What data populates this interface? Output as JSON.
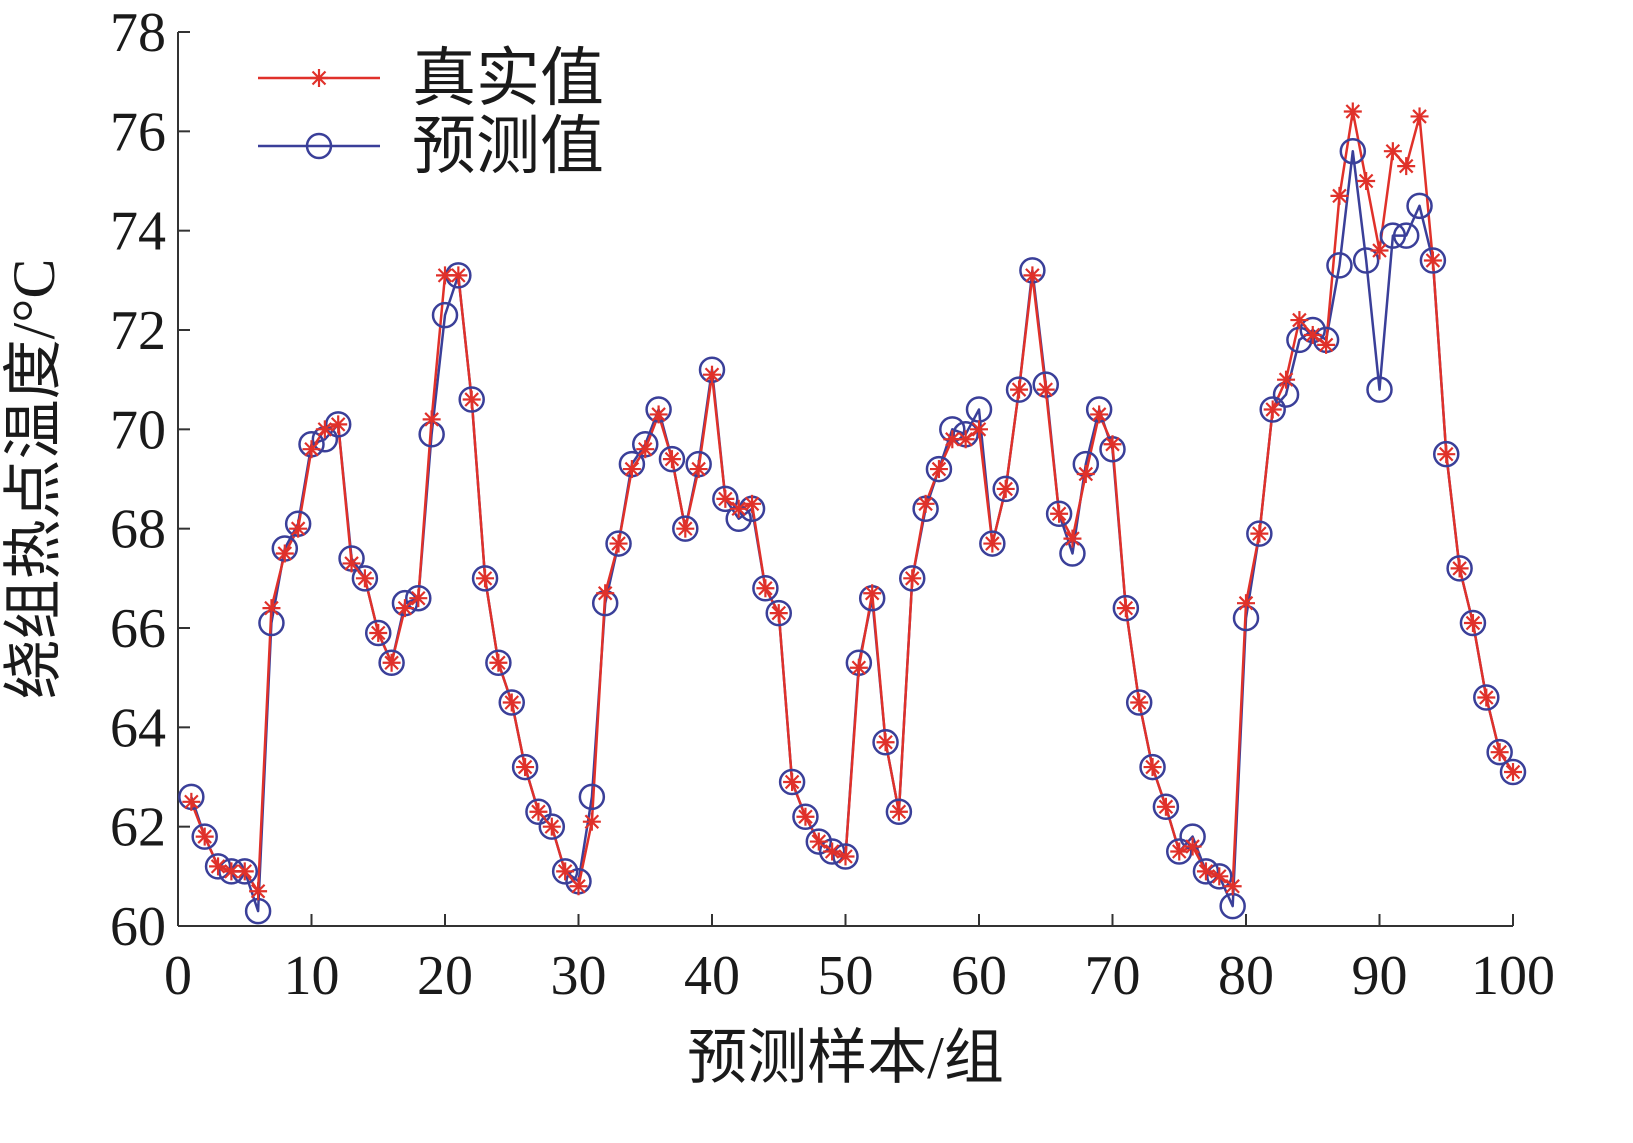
{
  "chart_data": {
    "type": "line",
    "xlabel": "预测样本/组",
    "ylabel": "绕组热点温度/°C",
    "xlim": [
      0,
      100
    ],
    "ylim": [
      60,
      78
    ],
    "xticks": [
      0,
      10,
      20,
      30,
      40,
      50,
      60,
      70,
      80,
      90,
      100
    ],
    "yticks": [
      60,
      62,
      64,
      66,
      68,
      70,
      72,
      74,
      76,
      78
    ],
    "grid": false,
    "legend_position": "top-left",
    "x": [
      1,
      2,
      3,
      4,
      5,
      6,
      7,
      8,
      9,
      10,
      11,
      12,
      13,
      14,
      15,
      16,
      17,
      18,
      19,
      20,
      21,
      22,
      23,
      24,
      25,
      26,
      27,
      28,
      29,
      30,
      31,
      32,
      33,
      34,
      35,
      36,
      37,
      38,
      39,
      40,
      41,
      42,
      43,
      44,
      45,
      46,
      47,
      48,
      49,
      50,
      51,
      52,
      53,
      54,
      55,
      56,
      57,
      58,
      59,
      60,
      61,
      62,
      63,
      64,
      65,
      66,
      67,
      68,
      69,
      70,
      71,
      72,
      73,
      74,
      75,
      76,
      77,
      78,
      79,
      80,
      81,
      82,
      83,
      84,
      85,
      86,
      87,
      88,
      89,
      90,
      91,
      92,
      93,
      94,
      95,
      96,
      97,
      98,
      99,
      100
    ],
    "series": [
      {
        "name": "真实值",
        "color": "#e0312a",
        "marker": "asterisk",
        "values": [
          62.5,
          61.8,
          61.2,
          61.1,
          61.1,
          60.7,
          66.4,
          67.5,
          68.0,
          69.6,
          70.0,
          70.1,
          67.3,
          67.0,
          65.9,
          65.3,
          66.4,
          66.6,
          70.2,
          73.1,
          73.1,
          70.6,
          67.0,
          65.3,
          64.5,
          63.2,
          62.3,
          62.0,
          61.1,
          60.8,
          62.1,
          66.7,
          67.7,
          69.2,
          69.6,
          70.3,
          69.4,
          68.0,
          69.2,
          71.1,
          68.6,
          68.4,
          68.5,
          66.8,
          66.3,
          62.9,
          62.2,
          61.7,
          61.5,
          61.4,
          65.2,
          66.7,
          63.7,
          62.3,
          67.0,
          68.5,
          69.2,
          69.8,
          69.8,
          70.0,
          67.7,
          68.8,
          70.8,
          73.1,
          70.8,
          68.3,
          67.8,
          69.1,
          70.3,
          69.7,
          66.4,
          64.5,
          63.2,
          62.4,
          61.5,
          61.6,
          61.1,
          61.0,
          60.8,
          66.5,
          67.9,
          70.4,
          71.0,
          72.2,
          71.9,
          71.7,
          74.7,
          76.4,
          75.0,
          73.6,
          75.6,
          75.3,
          76.3,
          73.4,
          69.5,
          67.2,
          66.1,
          64.6,
          63.5,
          63.1
        ]
      },
      {
        "name": "预测值",
        "color": "#3a3f99",
        "marker": "circle",
        "values": [
          62.6,
          61.8,
          61.2,
          61.1,
          61.1,
          60.3,
          66.1,
          67.6,
          68.1,
          69.7,
          69.8,
          70.1,
          67.4,
          67.0,
          65.9,
          65.3,
          66.5,
          66.6,
          69.9,
          72.3,
          73.1,
          70.6,
          67.0,
          65.3,
          64.5,
          63.2,
          62.3,
          62.0,
          61.1,
          60.9,
          62.6,
          66.5,
          67.7,
          69.3,
          69.7,
          70.4,
          69.4,
          68.0,
          69.3,
          71.2,
          68.6,
          68.2,
          68.4,
          66.8,
          66.3,
          62.9,
          62.2,
          61.7,
          61.5,
          61.4,
          65.3,
          66.6,
          63.7,
          62.3,
          67.0,
          68.4,
          69.2,
          70.0,
          69.9,
          70.4,
          67.7,
          68.8,
          70.8,
          73.2,
          70.9,
          68.3,
          67.5,
          69.3,
          70.4,
          69.6,
          66.4,
          64.5,
          63.2,
          62.4,
          61.5,
          61.8,
          61.1,
          61.0,
          60.4,
          66.2,
          67.9,
          70.4,
          70.7,
          71.8,
          72.0,
          71.8,
          73.3,
          75.6,
          73.4,
          70.8,
          73.9,
          73.9,
          74.5,
          73.4,
          69.5,
          67.2,
          66.1,
          64.6,
          63.5,
          63.1
        ]
      }
    ]
  }
}
